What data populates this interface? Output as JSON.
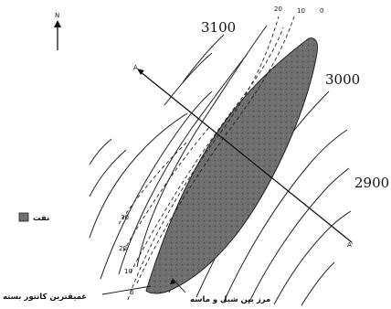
{
  "north_arrow": {
    "label": "N"
  },
  "contours": {
    "labels": [
      "3100",
      "3000",
      "2900"
    ]
  },
  "isopach": {
    "top_labels": [
      "20",
      "10",
      "0"
    ],
    "left_labels": [
      "30",
      "20",
      "10",
      "0"
    ]
  },
  "section_line": {
    "start_label": "A",
    "end_label": "A'"
  },
  "legend": {
    "oil_label": "نفت"
  },
  "annotations": {
    "deepest_closed_contour": "عمیقترین کانتور بسته",
    "shale_sand_boundary": "مرز بین شیل و ماسه"
  },
  "colors": {
    "reservoir_fill": "#6f6f6f",
    "line": "#1a1a1a",
    "background": "#ffffff"
  }
}
